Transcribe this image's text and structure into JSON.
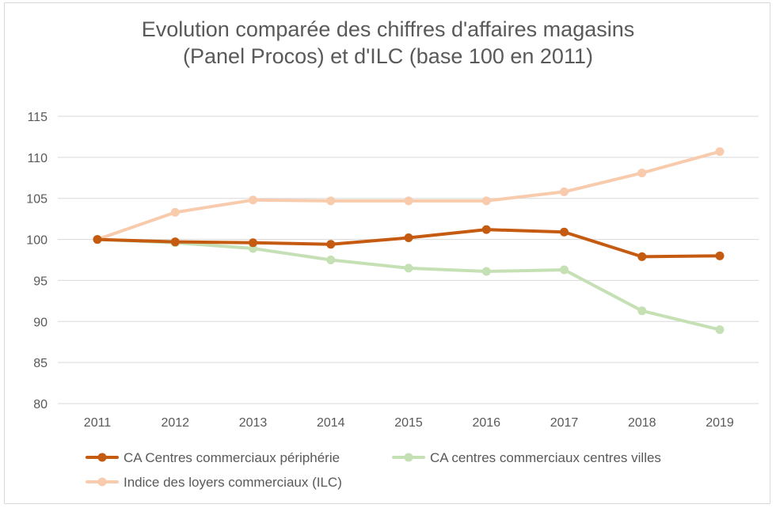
{
  "chart_data": {
    "type": "line",
    "title_lines": [
      "Evolution comparée des chiffres d'affaires magasins",
      "(Panel Procos) et d'ILC (base 100 en 2011)"
    ],
    "xlabel": "",
    "ylabel": "",
    "categories": [
      "2011",
      "2012",
      "2013",
      "2014",
      "2015",
      "2016",
      "2017",
      "2018",
      "2019"
    ],
    "ylim": [
      80,
      115
    ],
    "yticks": [
      80,
      85,
      90,
      95,
      100,
      105,
      110,
      115
    ],
    "grid": true,
    "legend_position": "bottom",
    "series": [
      {
        "name": "CA Centres commerciaux périphérie",
        "color": "#c55a11",
        "values": [
          100,
          99.7,
          99.6,
          99.4,
          100.2,
          101.2,
          100.9,
          97.9,
          98.0
        ]
      },
      {
        "name": "CA centres commerciaux centres villes",
        "color": "#c5e0b4",
        "values": [
          100,
          99.6,
          98.9,
          97.5,
          96.5,
          96.1,
          96.3,
          91.3,
          89.0
        ]
      },
      {
        "name": "Indice des loyers commerciaux (ILC)",
        "color": "#f8cbad",
        "values": [
          100,
          103.3,
          104.8,
          104.7,
          104.7,
          104.7,
          105.8,
          108.1,
          110.7
        ]
      }
    ]
  }
}
